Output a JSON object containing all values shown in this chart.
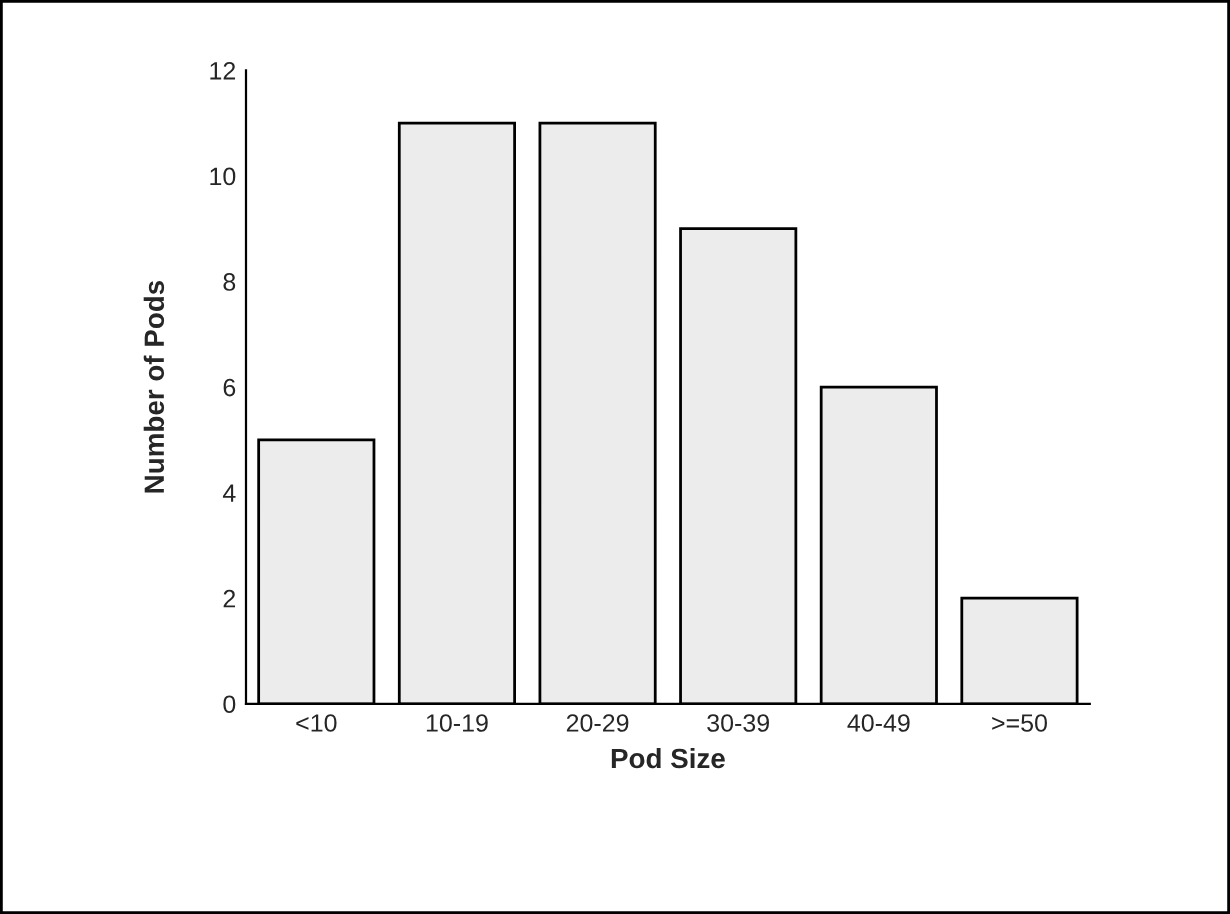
{
  "chart_data": {
    "type": "bar",
    "xlabel": "Pod Size",
    "ylabel": "Number of Pods",
    "categories": [
      "<10",
      "10-19",
      "20-29",
      "30-39",
      "40-49",
      ">=50"
    ],
    "values": [
      5,
      11,
      11,
      9,
      6,
      2
    ],
    "color": "#ececec",
    "ylim": [
      0,
      12
    ],
    "yticks": [
      0,
      2,
      4,
      6,
      8,
      10,
      12
    ],
    "grid": false,
    "legend": false
  }
}
